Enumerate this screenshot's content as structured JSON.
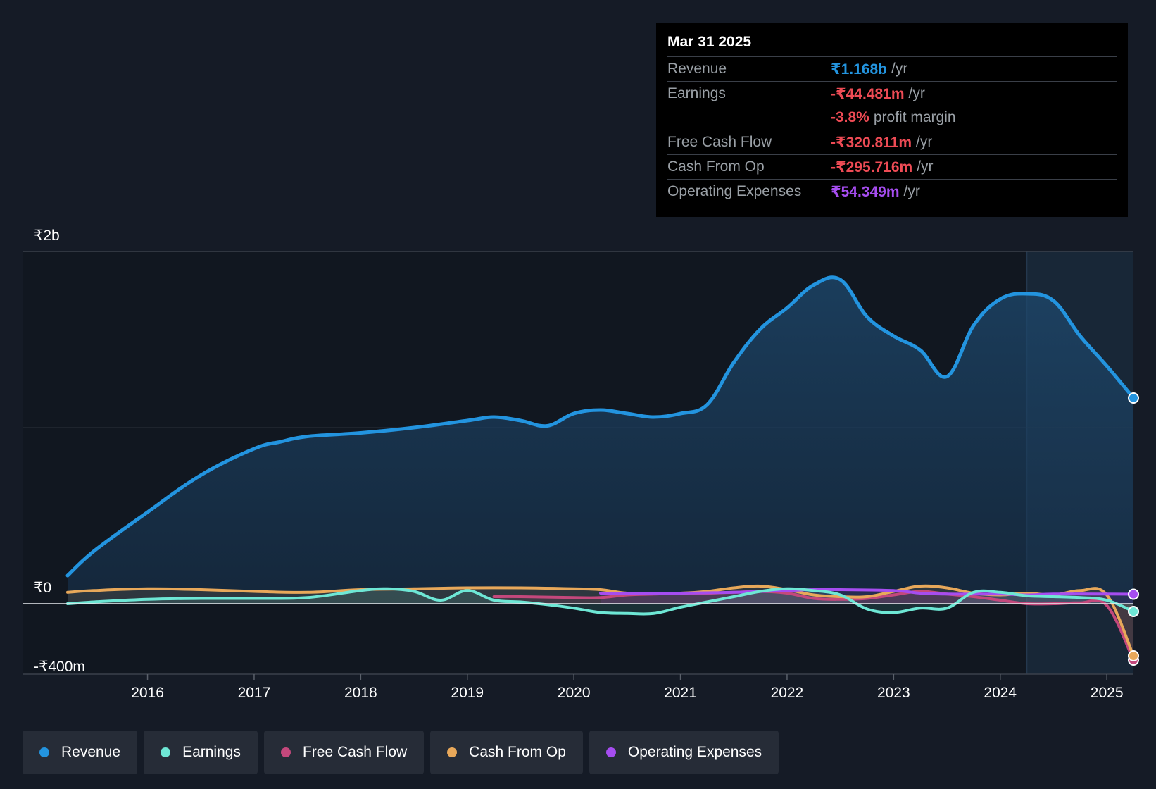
{
  "colors": {
    "revenue": "#2394df",
    "earnings": "#6ee7d5",
    "fcf": "#c4487c",
    "cfo": "#e8a85a",
    "opex": "#a64df0"
  },
  "tooltip": {
    "date": "Mar 31 2025",
    "rows": [
      {
        "label": "Revenue",
        "value": "₹1.168b",
        "unit": "/yr"
      },
      {
        "label": "Earnings",
        "value": "-₹44.481m",
        "unit": "/yr"
      },
      {
        "label": "",
        "value": "-3.8%",
        "unit": "profit margin"
      },
      {
        "label": "Free Cash Flow",
        "value": "-₹320.811m",
        "unit": "/yr"
      },
      {
        "label": "Cash From Op",
        "value": "-₹295.716m",
        "unit": "/yr"
      },
      {
        "label": "Operating Expenses",
        "value": "₹54.349m",
        "unit": "/yr"
      }
    ]
  },
  "legend": [
    {
      "label": "Revenue",
      "color": "#2394df"
    },
    {
      "label": "Earnings",
      "color": "#6ee7d5"
    },
    {
      "label": "Free Cash Flow",
      "color": "#c4487c"
    },
    {
      "label": "Cash From Op",
      "color": "#e8a85a"
    },
    {
      "label": "Operating Expenses",
      "color": "#a64df0"
    }
  ],
  "chart_data": {
    "type": "area",
    "title": "",
    "xlabel": "",
    "ylabel": "",
    "y_tick_labels": [
      "₹2b",
      "₹0",
      "-₹400m"
    ],
    "y_tick_values": [
      2000,
      0,
      -400
    ],
    "x_tick_labels": [
      "2016",
      "2017",
      "2018",
      "2019",
      "2020",
      "2021",
      "2022",
      "2023",
      "2024",
      "2025"
    ],
    "x_tick_values": [
      2016,
      2017,
      2018,
      2019,
      2020,
      2021,
      2022,
      2023,
      2024,
      2025
    ],
    "xlim": [
      2015.25,
      2025.25
    ],
    "ylim": [
      -400,
      2000
    ],
    "highlight_range": [
      2024.25,
      2025.25
    ],
    "series": [
      {
        "name": "Revenue",
        "key": "revenue",
        "x": [
          2015.25,
          2015.5,
          2016.0,
          2016.5,
          2017.0,
          2017.25,
          2017.5,
          2018.0,
          2018.5,
          2019.0,
          2019.25,
          2019.5,
          2019.75,
          2020.0,
          2020.25,
          2020.5,
          2020.75,
          2021.0,
          2021.25,
          2021.5,
          2021.75,
          2022.0,
          2022.25,
          2022.5,
          2022.75,
          2023.0,
          2023.25,
          2023.5,
          2023.75,
          2024.0,
          2024.25,
          2024.5,
          2024.75,
          2025.0,
          2025.25
        ],
        "values": [
          160,
          300,
          520,
          730,
          880,
          920,
          950,
          970,
          1000,
          1040,
          1060,
          1040,
          1010,
          1080,
          1100,
          1080,
          1060,
          1080,
          1130,
          1370,
          1560,
          1680,
          1810,
          1840,
          1630,
          1520,
          1440,
          1290,
          1580,
          1730,
          1760,
          1720,
          1520,
          1350,
          1168
        ]
      },
      {
        "name": "Earnings",
        "key": "earnings",
        "x": [
          2015.25,
          2015.5,
          2016.0,
          2016.5,
          2017.0,
          2017.5,
          2018.0,
          2018.25,
          2018.5,
          2018.75,
          2019.0,
          2019.25,
          2019.5,
          2019.75,
          2020.0,
          2020.25,
          2020.5,
          2020.75,
          2021.0,
          2021.25,
          2021.5,
          2021.75,
          2022.0,
          2022.25,
          2022.5,
          2022.75,
          2023.0,
          2023.25,
          2023.5,
          2023.75,
          2024.0,
          2024.25,
          2024.5,
          2024.75,
          2025.0,
          2025.25
        ],
        "values": [
          0,
          10,
          25,
          30,
          30,
          35,
          75,
          85,
          70,
          20,
          75,
          20,
          10,
          -5,
          -25,
          -50,
          -55,
          -55,
          -20,
          10,
          40,
          70,
          85,
          75,
          50,
          -30,
          -50,
          -25,
          -25,
          65,
          65,
          45,
          40,
          35,
          20,
          -44
        ]
      },
      {
        "name": "Free Cash Flow",
        "key": "fcf",
        "x": [
          2019.25,
          2019.5,
          2020.0,
          2020.25,
          2020.5,
          2020.75,
          2021.0,
          2021.25,
          2021.5,
          2021.75,
          2022.0,
          2022.25,
          2022.5,
          2022.75,
          2023.0,
          2023.25,
          2023.5,
          2023.75,
          2024.0,
          2024.25,
          2024.5,
          2024.75,
          2025.0,
          2025.25
        ],
        "values": [
          40,
          40,
          35,
          35,
          50,
          55,
          60,
          60,
          65,
          70,
          60,
          30,
          25,
          30,
          50,
          70,
          55,
          40,
          20,
          0,
          0,
          5,
          -10,
          -320
        ]
      },
      {
        "name": "Cash From Op",
        "key": "cfo",
        "x": [
          2015.25,
          2015.5,
          2016.0,
          2016.5,
          2017.0,
          2017.5,
          2018.0,
          2018.5,
          2019.0,
          2019.5,
          2020.0,
          2020.25,
          2020.5,
          2020.75,
          2021.0,
          2021.25,
          2021.5,
          2021.75,
          2022.0,
          2022.25,
          2022.5,
          2022.75,
          2023.0,
          2023.25,
          2023.5,
          2023.75,
          2024.0,
          2024.25,
          2024.5,
          2024.75,
          2025.0,
          2025.25
        ],
        "values": [
          65,
          75,
          85,
          80,
          70,
          65,
          80,
          85,
          90,
          90,
          85,
          80,
          60,
          60,
          60,
          70,
          90,
          100,
          80,
          50,
          40,
          40,
          70,
          100,
          90,
          60,
          50,
          60,
          50,
          75,
          50,
          -296
        ]
      },
      {
        "name": "Operating Expenses",
        "key": "opex",
        "x": [
          2020.25,
          2020.5,
          2021.0,
          2021.5,
          2022.0,
          2022.25,
          2022.5,
          2023.0,
          2023.25,
          2023.5,
          2024.0,
          2024.25,
          2024.5,
          2025.0,
          2025.25
        ],
        "values": [
          60,
          60,
          60,
          65,
          75,
          80,
          80,
          75,
          60,
          55,
          55,
          50,
          55,
          55,
          54
        ]
      }
    ]
  }
}
